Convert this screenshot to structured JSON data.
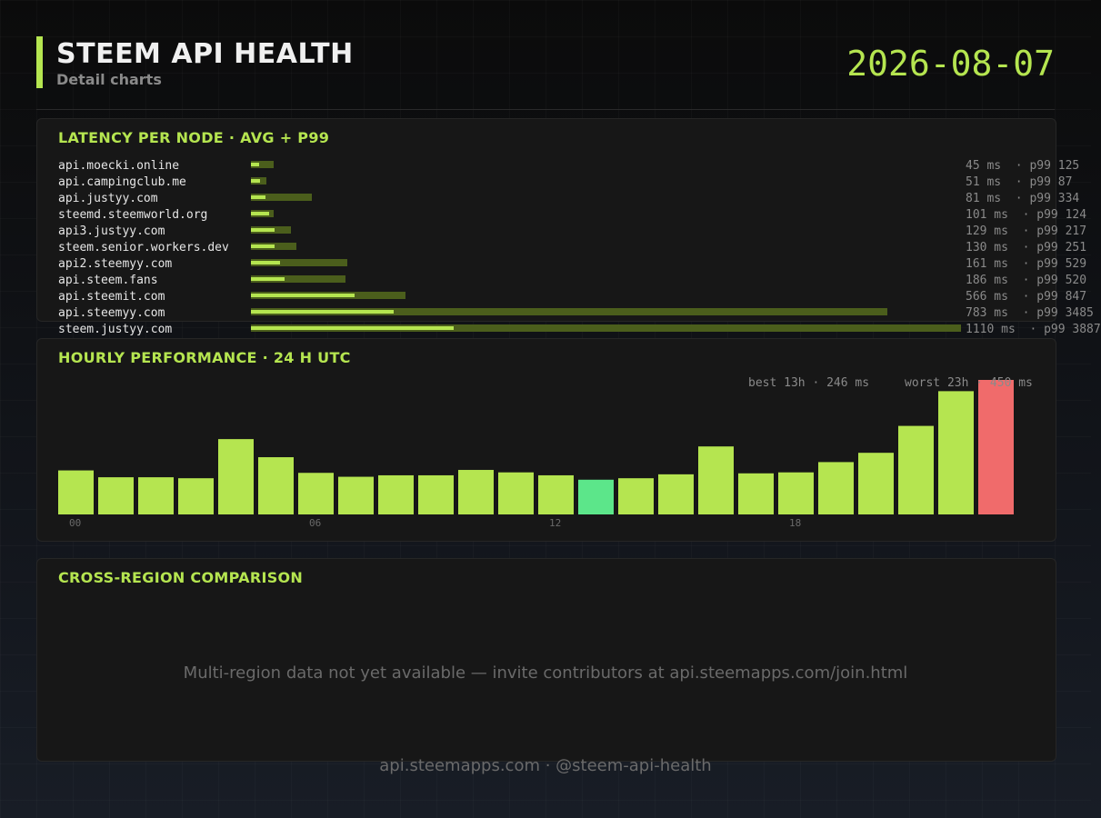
{
  "header": {
    "title": "STEEM API HEALTH",
    "subtitle": "Detail charts",
    "date": "2026-08-07"
  },
  "latency_panel": {
    "title": "LATENCY PER NODE  ·  AVG + P99"
  },
  "hourly_panel": {
    "title": "HOURLY PERFORMANCE  ·  24 H UTC",
    "best_label": "best 13h · 246 ms",
    "worst_label": "worst 23h · 450 ms"
  },
  "region_panel": {
    "title": "CROSS-REGION COMPARISON",
    "empty_message": "Multi-region data not yet available — invite contributors at api.steemapps.com/join.html"
  },
  "footer": {
    "text": "api.steemapps.com  ·  @steem-api-health"
  },
  "colors": {
    "accent": "#b5e550",
    "p99_bar": "#4b5e1c",
    "best": "#5ce68a",
    "worst": "#f06b6b",
    "normal": "#b5e550"
  },
  "chart_data": [
    {
      "type": "bar",
      "title": "LATENCY PER NODE  ·  AVG + P99",
      "orientation": "horizontal",
      "categories": [
        "api.moecki.online",
        "api.campingclub.me",
        "api.justyy.com",
        "steemd.steemworld.org",
        "api3.justyy.com",
        "steem.senior.workers.dev",
        "api2.steemyy.com",
        "api.steem.fans",
        "api.steemit.com",
        "api.steemyy.com",
        "steem.justyy.com"
      ],
      "series": [
        {
          "name": "avg",
          "values": [
            45,
            51,
            81,
            101,
            129,
            130,
            161,
            186,
            566,
            783,
            1110
          ]
        },
        {
          "name": "p99",
          "values": [
            125,
            87,
            334,
            124,
            217,
            251,
            529,
            520,
            847,
            3485,
            3887
          ]
        }
      ],
      "value_labels": [
        "45 ms  · p99 125",
        "51 ms  · p99 87",
        "81 ms  · p99 334",
        "101 ms  · p99 124",
        "129 ms  · p99 217",
        "130 ms  · p99 251",
        "161 ms  · p99 529",
        "186 ms  · p99 520",
        "566 ms  · p99 847",
        "783 ms  · p99 3485",
        "1110 ms  · p99 3887"
      ],
      "xlim": [
        0,
        3887
      ]
    },
    {
      "type": "bar",
      "title": "HOURLY PERFORMANCE  ·  24 H UTC",
      "x": [
        "00",
        "01",
        "02",
        "03",
        "04",
        "05",
        "06",
        "07",
        "08",
        "09",
        "10",
        "11",
        "12",
        "13",
        "14",
        "15",
        "16",
        "17",
        "18",
        "19",
        "20",
        "21",
        "22",
        "23"
      ],
      "tick_labels": [
        "00",
        "06",
        "12",
        "18"
      ],
      "values": [
        265,
        251,
        251,
        249,
        329,
        292,
        260,
        252,
        255,
        255,
        266,
        261,
        255,
        246,
        249,
        257,
        314,
        259,
        261,
        282,
        301,
        356,
        427,
        450
      ],
      "best_hour": "13",
      "worst_hour": "23",
      "ylim": [
        175,
        450
      ],
      "grid": false
    }
  ]
}
